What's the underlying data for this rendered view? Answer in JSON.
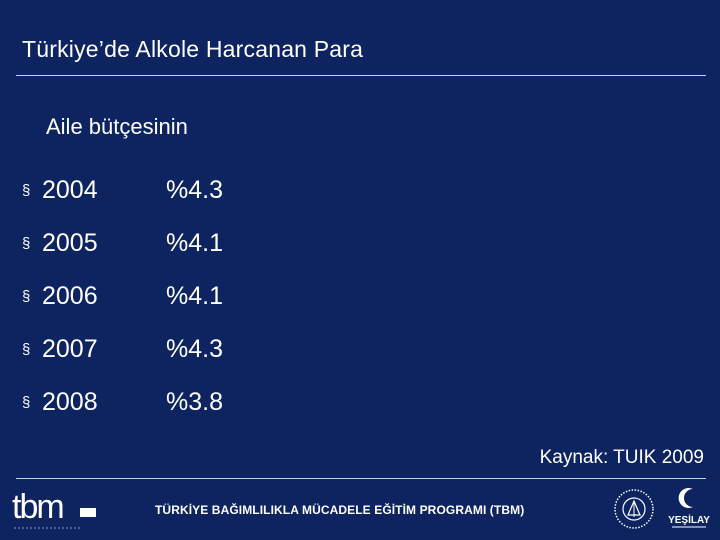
{
  "slide": {
    "title": "Türkiye’de Alkole Harcanan Para",
    "subtitle": "Aile bütçesinin",
    "items": [
      {
        "bullet": "§",
        "year": "2004",
        "percent": "%4.3"
      },
      {
        "bullet": "§",
        "year": "2005",
        "percent": "%4.1"
      },
      {
        "bullet": "§",
        "year": "2006",
        "percent": "%4.1"
      },
      {
        "bullet": "§",
        "year": "2007",
        "percent": "%4.3"
      },
      {
        "bullet": "§",
        "year": "2008",
        "percent": "%3.8"
      }
    ],
    "source": "Kaynak: TUIK 2009"
  },
  "footer": {
    "program_text": "TÜRKİYE BAĞIMLILIKLA MÜCADELE EĞİTİM PROGRAMI (TBM)",
    "tbm_logo_text": "tbm",
    "yesilay_logo_text": "YEŞİLAY"
  },
  "colors": {
    "background": "#0d2461",
    "text": "#ffffff",
    "rule": "#c9cfe0"
  }
}
